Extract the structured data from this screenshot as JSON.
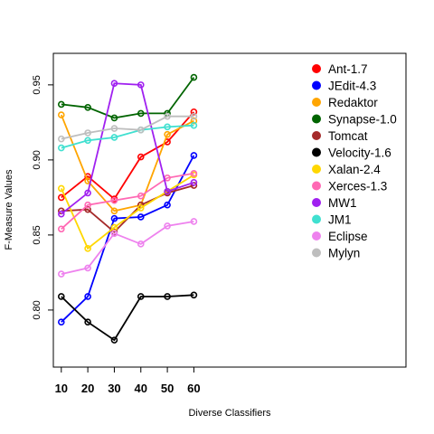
{
  "chart_data": {
    "type": "line",
    "xlabel": "Diverse Classifiers",
    "ylabel": "F-Measure Values",
    "x": [
      10,
      20,
      30,
      40,
      50,
      60
    ],
    "xticks": [
      10,
      20,
      30,
      40,
      50,
      60
    ],
    "xlim": [
      7,
      140
    ],
    "yticks": [
      0.8,
      0.85,
      0.9,
      0.95
    ],
    "ylim": [
      0.762,
      0.971
    ],
    "grid": false,
    "legend_position": "top-right",
    "series": [
      {
        "name": "Ant-1.7",
        "color": "#ff0000",
        "values": [
          0.875,
          0.889,
          0.874,
          0.902,
          0.912,
          0.932
        ]
      },
      {
        "name": " JEdit-4.3",
        "color": "#0000ff",
        "values": [
          0.792,
          0.809,
          0.861,
          0.862,
          0.87,
          0.903
        ]
      },
      {
        "name": "Redaktor",
        "color": "#ffa500",
        "values": [
          0.93,
          0.886,
          0.866,
          0.87,
          0.917,
          0.926
        ]
      },
      {
        "name": "Synapse-1.0",
        "color": "#006400",
        "values": [
          0.937,
          0.935,
          0.928,
          0.931,
          0.931,
          0.955
        ]
      },
      {
        "name": "Tomcat",
        "color": "#a52a2a",
        "values": [
          0.866,
          0.867,
          0.852,
          0.87,
          0.878,
          0.883
        ]
      },
      {
        "name": "Velocity-1.6",
        "color": "#000000",
        "values": [
          0.809,
          0.792,
          0.78,
          0.809,
          0.809,
          0.81
        ]
      },
      {
        "name": "Xalan-2.4",
        "color": "#ffd700",
        "values": [
          0.881,
          0.841,
          0.855,
          0.868,
          0.879,
          0.89
        ]
      },
      {
        "name": "Xerces-1.3",
        "color": "#ff69b4",
        "values": [
          0.854,
          0.87,
          0.873,
          0.876,
          0.888,
          0.891
        ]
      },
      {
        "name": "MW1",
        "color": "#a020f0",
        "values": [
          0.864,
          0.878,
          0.951,
          0.95,
          0.879,
          0.885
        ]
      },
      {
        "name": "JM1",
        "color": "#40e0d0",
        "values": [
          0.908,
          0.913,
          0.915,
          0.92,
          0.922,
          0.923
        ]
      },
      {
        "name": "Eclipse",
        "color": "#ee82ee",
        "values": [
          0.824,
          0.828,
          0.851,
          0.844,
          0.856,
          0.859
        ]
      },
      {
        "name": "Mylyn",
        "color": "#bebebe",
        "values": [
          0.914,
          0.918,
          0.921,
          0.92,
          0.929,
          0.929
        ]
      }
    ]
  }
}
